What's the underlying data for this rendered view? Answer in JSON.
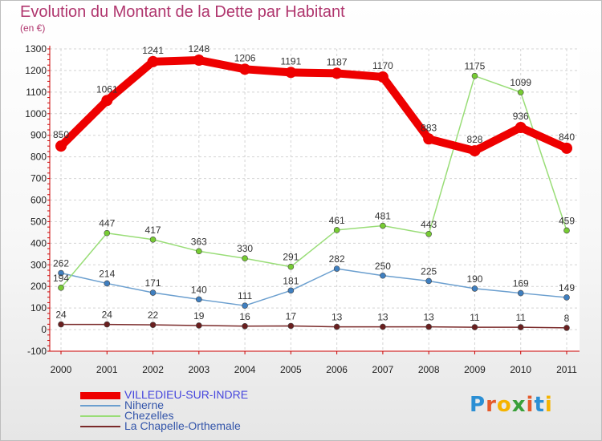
{
  "title": "Evolution du Montant de la Dette par Habitant",
  "unit_label": "(en €)",
  "logo": {
    "text": "Proxiti",
    "letters": [
      "P",
      "r",
      "o",
      "x",
      "i",
      "t",
      "i"
    ],
    "colors": [
      "#2b8fd4",
      "#e55a2b",
      "#f5b400",
      "#3aa03a",
      "#e55a2b",
      "#2b8fd4",
      "#f5b400"
    ]
  },
  "chart_data": {
    "type": "line",
    "title": "Evolution du Montant de la Dette par Habitant",
    "ylabel": "(en €)",
    "xlabel": "",
    "x": [
      "2000",
      "2001",
      "2002",
      "2003",
      "2004",
      "2005",
      "2006",
      "2007",
      "2008",
      "2009",
      "2010",
      "2011"
    ],
    "ylim": [
      -100,
      1300
    ],
    "yticks": [
      -100,
      0,
      100,
      200,
      300,
      400,
      500,
      600,
      700,
      800,
      900,
      1000,
      1100,
      1200,
      1300
    ],
    "grid": true,
    "legend_position": "bottom-left",
    "series": [
      {
        "name": "VILLEDIEU-SUR-INDRE",
        "color": "#ee0000",
        "thick": true,
        "values": [
          850,
          1061,
          1241,
          1248,
          1206,
          1191,
          1187,
          1170,
          883,
          828,
          936,
          840
        ]
      },
      {
        "name": "Niherne",
        "color": "#6b9fcf",
        "point_color": "#3f7fc0",
        "values": [
          262,
          214,
          171,
          140,
          111,
          181,
          282,
          250,
          225,
          190,
          169,
          149
        ]
      },
      {
        "name": "Chezelles",
        "color": "#99dd77",
        "point_color": "#77cc33",
        "values": [
          194,
          447,
          417,
          363,
          330,
          291,
          461,
          481,
          443,
          1175,
          1099,
          459
        ]
      },
      {
        "name": "La Chapelle-Orthemale",
        "color": "#7a2a2a",
        "point_color": "#6a1f1f",
        "values": [
          24,
          24,
          22,
          19,
          16,
          17,
          13,
          13,
          13,
          11,
          11,
          8
        ]
      }
    ]
  }
}
